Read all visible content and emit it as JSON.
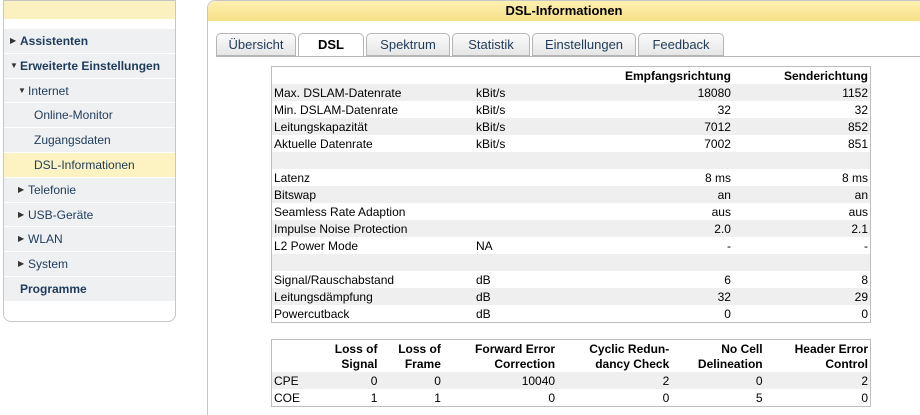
{
  "sidebar": {
    "items": [
      {
        "label": "Assistenten",
        "level": 0,
        "arrow": "right"
      },
      {
        "label": "Erweiterte Einstellungen",
        "level": 0,
        "arrow": "down"
      },
      {
        "label": "Internet",
        "level": 1,
        "arrow": "down"
      },
      {
        "label": "Online-Monitor",
        "level": 2
      },
      {
        "label": "Zugangsdaten",
        "level": 2
      },
      {
        "label": "DSL-Informationen",
        "level": 2,
        "active": true
      },
      {
        "label": "Telefonie",
        "level": 1,
        "arrow": "right"
      },
      {
        "label": "USB-Geräte",
        "level": 1,
        "arrow": "right"
      },
      {
        "label": "WLAN",
        "level": 1,
        "arrow": "right"
      },
      {
        "label": "System",
        "level": 1,
        "arrow": "right"
      },
      {
        "label": "Programme",
        "level": 0
      }
    ]
  },
  "header": {
    "title": "DSL-Informationen"
  },
  "tabs": {
    "items": [
      "Übersicht",
      "DSL",
      "Spektrum",
      "Statistik",
      "Einstellungen",
      "Feedback"
    ],
    "active": 1
  },
  "table": {
    "headers": [
      "Empfangsrichtung",
      "Senderichtung"
    ],
    "sections": [
      [
        {
          "label": "Max. DSLAM-Datenrate",
          "unit": "kBit/s",
          "down": "18080",
          "up": "1152"
        },
        {
          "label": "Min. DSLAM-Datenrate",
          "unit": "kBit/s",
          "down": "32",
          "up": "32"
        },
        {
          "label": "Leitungskapazität",
          "unit": "kBit/s",
          "down": "7012",
          "up": "852"
        },
        {
          "label": "Aktuelle Datenrate",
          "unit": "kBit/s",
          "down": "7002",
          "up": "851"
        }
      ],
      [
        {
          "label": "Latenz",
          "down": "8 ms",
          "up": "8 ms"
        },
        {
          "label": "Bitswap",
          "down": "an",
          "up": "an"
        },
        {
          "label": "Seamless Rate Adaption",
          "down": "aus",
          "up": "aus"
        },
        {
          "label": "Impulse Noise Protection",
          "down": "2.0",
          "up": "2.1"
        },
        {
          "label": "L2 Power Mode",
          "unit": "NA",
          "down": "-",
          "up": "-"
        }
      ],
      [
        {
          "label": "Signal/Rauschabstand",
          "unit": "dB",
          "down": "6",
          "up": "8"
        },
        {
          "label": "Leitungsdämpfung",
          "unit": "dB",
          "down": "32",
          "up": "29"
        },
        {
          "label": "Powercutback",
          "unit": "dB",
          "down": "0",
          "up": "0"
        }
      ]
    ]
  },
  "errors": {
    "headers": [
      [
        "Loss of",
        "Signal"
      ],
      [
        "Loss of",
        "Frame"
      ],
      [
        "Forward Error",
        "Correction"
      ],
      [
        "Cyclic Redun-",
        "dancy Check"
      ],
      [
        "No Cell",
        "Delineation"
      ],
      [
        "Header Error",
        "Control"
      ]
    ],
    "rows": [
      {
        "label": "CPE",
        "values": [
          "0",
          "0",
          "10040",
          "2",
          "0",
          "2"
        ]
      },
      {
        "label": "COE",
        "values": [
          "1",
          "1",
          "0",
          "0",
          "5",
          "0"
        ]
      }
    ]
  }
}
